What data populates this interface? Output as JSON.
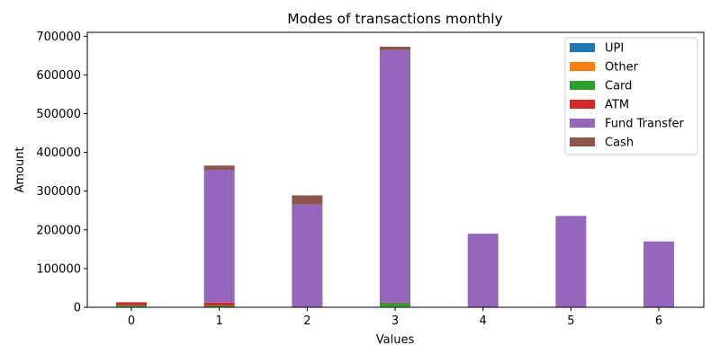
{
  "chart_data": {
    "type": "bar",
    "stacked": true,
    "title": "Modes of transactions monthly",
    "xlabel": "Values",
    "ylabel": "Amount",
    "categories": [
      "0",
      "1",
      "2",
      "3",
      "4",
      "5",
      "6"
    ],
    "ylim": [
      0,
      710000
    ],
    "yticks": [
      0,
      100000,
      200000,
      300000,
      400000,
      500000,
      600000,
      700000
    ],
    "ytick_labels": [
      "0",
      "100000",
      "200000",
      "300000",
      "400000",
      "500000",
      "600000",
      "700000"
    ],
    "grid": false,
    "legend_position": "top-right",
    "series": [
      {
        "name": "UPI",
        "color": "#1f77b4",
        "values": [
          1000,
          500,
          0,
          1000,
          0,
          0,
          0
        ]
      },
      {
        "name": "Other",
        "color": "#ff7f0e",
        "values": [
          500,
          500,
          0,
          500,
          0,
          0,
          0
        ]
      },
      {
        "name": "Card",
        "color": "#2ca02c",
        "values": [
          3500,
          3000,
          0,
          9000,
          0,
          0,
          0
        ]
      },
      {
        "name": "ATM",
        "color": "#d62728",
        "values": [
          8000,
          8000,
          0,
          1500,
          0,
          0,
          0
        ]
      },
      {
        "name": "Fund Transfer",
        "color": "#9467bd",
        "values": [
          0,
          343000,
          265000,
          652000,
          190000,
          236000,
          170000
        ]
      },
      {
        "name": "Cash",
        "color": "#8c564b",
        "values": [
          0,
          11000,
          24000,
          9000,
          0,
          0,
          0
        ]
      }
    ]
  }
}
